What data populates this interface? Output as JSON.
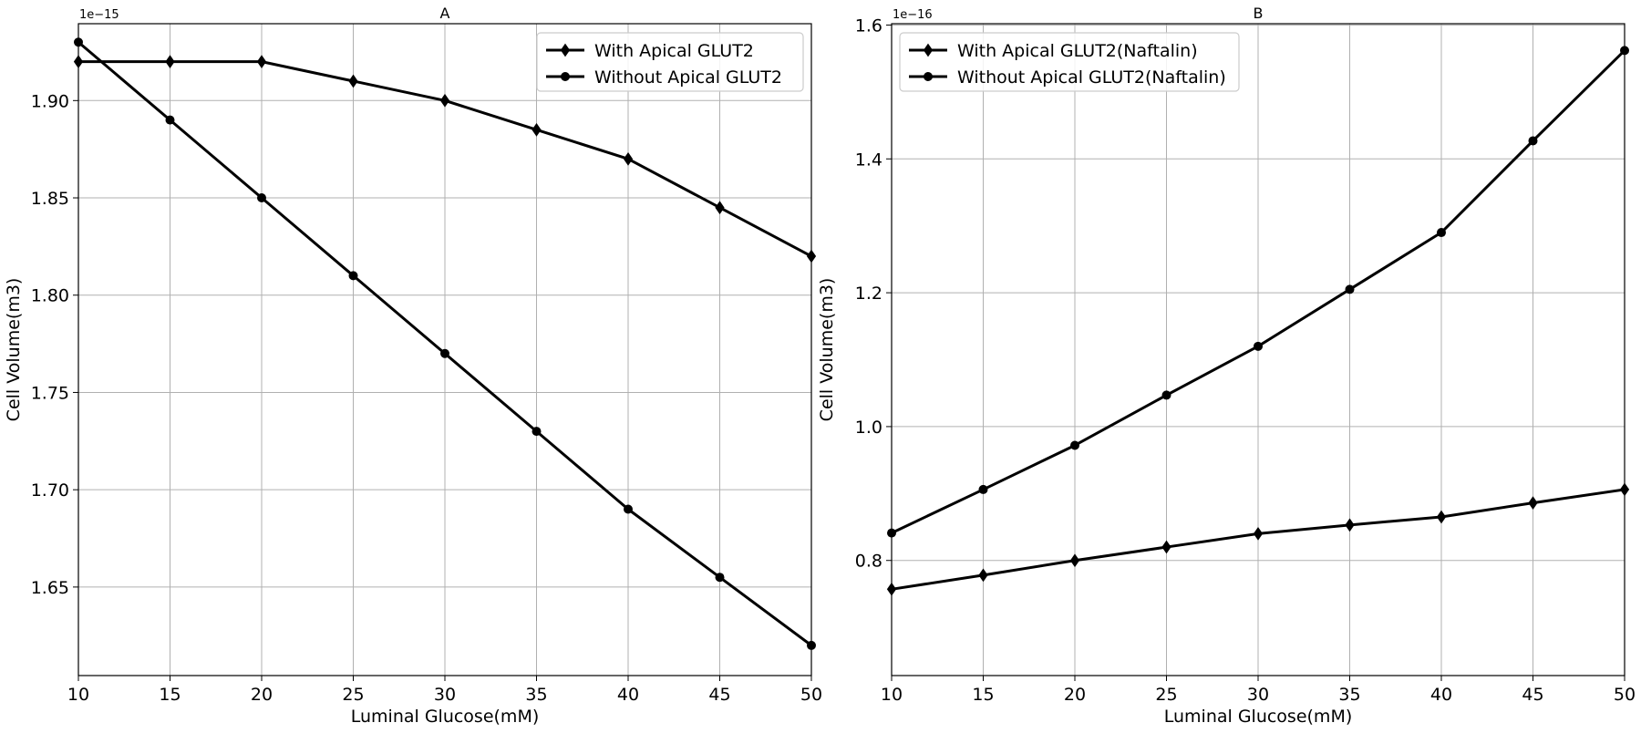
{
  "chart_data": [
    {
      "type": "line",
      "title": "A",
      "xlabel": "Luminal Glucose(mM)",
      "ylabel": "Cell Volume(m3)",
      "offset_label": "1e−15",
      "x": [
        10,
        15,
        20,
        25,
        30,
        35,
        40,
        45,
        50
      ],
      "xlim": [
        10,
        50
      ],
      "ylim": [
        1.6045,
        1.9395
      ],
      "xticks": [
        "10",
        "15",
        "20",
        "25",
        "30",
        "35",
        "40",
        "45",
        "50"
      ],
      "yticks": [
        "1.65",
        "1.70",
        "1.75",
        "1.80",
        "1.85",
        "1.90"
      ],
      "ytick_values": [
        1.65,
        1.7,
        1.75,
        1.8,
        1.85,
        1.9
      ],
      "grid": true,
      "legend_position": "top-right",
      "series": [
        {
          "name": "With Apical GLUT2",
          "marker": "diamond",
          "values": [
            1.92,
            1.92,
            1.92,
            1.91,
            1.9,
            1.885,
            1.87,
            1.845,
            1.82
          ]
        },
        {
          "name": "Without Apical GLUT2",
          "marker": "circle",
          "values": [
            1.93,
            1.89,
            1.85,
            1.81,
            1.77,
            1.73,
            1.69,
            1.655,
            1.62
          ]
        }
      ]
    },
    {
      "type": "line",
      "title": "B",
      "xlabel": "Luminal Glucose(mM)",
      "ylabel": "Cell Volume(m3)",
      "offset_label": "1e−16",
      "x": [
        10,
        15,
        20,
        25,
        30,
        35,
        40,
        45,
        50
      ],
      "xlim": [
        10,
        50
      ],
      "ylim": [
        0.628,
        1.602
      ],
      "xticks": [
        "10",
        "15",
        "20",
        "25",
        "30",
        "35",
        "40",
        "45",
        "50"
      ],
      "yticks": [
        "0.8",
        "1.0",
        "1.2",
        "1.4",
        "1.6"
      ],
      "ytick_values": [
        0.8,
        1.0,
        1.2,
        1.4,
        1.6
      ],
      "grid": true,
      "legend_position": "top-left",
      "series": [
        {
          "name": "With Apical GLUT2(Naftalin)",
          "marker": "diamond",
          "values": [
            0.757,
            0.778,
            0.8,
            0.82,
            0.84,
            0.853,
            0.865,
            0.886,
            0.906
          ]
        },
        {
          "name": "Without Apical GLUT2(Naftalin)",
          "marker": "circle",
          "values": [
            0.841,
            0.906,
            0.972,
            1.047,
            1.12,
            1.205,
            1.29,
            1.427,
            1.562
          ]
        }
      ]
    }
  ],
  "colors": {
    "line": "#000000",
    "grid": "#b0b0b0",
    "axes": "#000000",
    "legend_border": "#cccccc"
  }
}
